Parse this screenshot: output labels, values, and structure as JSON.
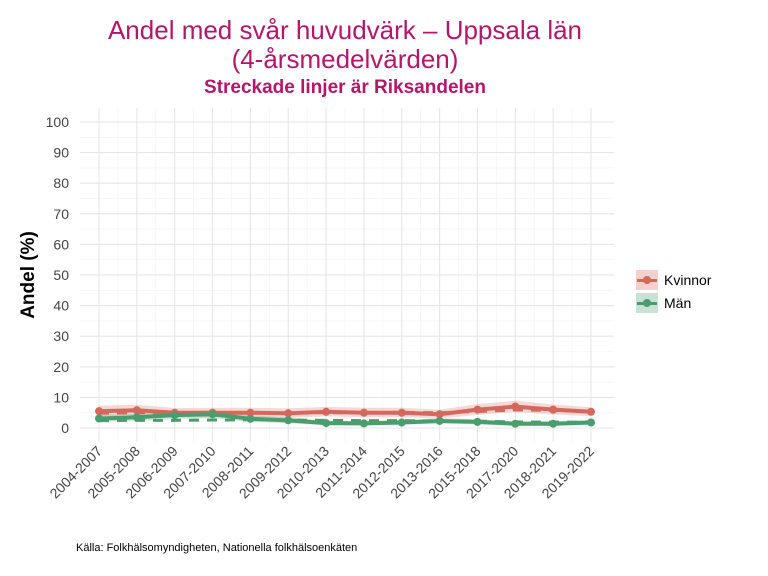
{
  "header": {
    "title_line1": "Andel med svår huvudvärk – Uppsala län",
    "title_line2": "(4-årsmedelvärden)",
    "subtitle": "Streckade linjer är Riksandelen"
  },
  "caption": "Källa: Folkhälsomyndigheten, Nationella folkhälsoenkäten",
  "chart_data": {
    "type": "line",
    "title": "Andel med svår huvudvärk – Uppsala län (4-årsmedelvärden)",
    "subtitle": "Streckade linjer är Riksandelen",
    "xlabel": "",
    "ylabel": "Andel (%)",
    "ylim": [
      0,
      100
    ],
    "yticks": [
      0,
      10,
      20,
      30,
      40,
      50,
      60,
      70,
      80,
      90,
      100
    ],
    "categories": [
      "2004-2007",
      "2005-2008",
      "2006-2009",
      "2007-2010",
      "2008-2011",
      "2009-2012",
      "2010-2013",
      "2011-2014",
      "2012-2015",
      "2013-2016",
      "2015-2018",
      "2017-2020",
      "2018-2021",
      "2019-2022"
    ],
    "legend_position": "right",
    "series": [
      {
        "name": "Kvinnor",
        "color": "#d4685d",
        "values": [
          5.5,
          5.8,
          5.0,
          5.0,
          5.0,
          4.8,
          5.3,
          5.0,
          5.0,
          4.5,
          6.0,
          7.0,
          6.0,
          5.3
        ],
        "lower": [
          3.8,
          4.0,
          3.5,
          3.5,
          3.5,
          3.3,
          3.8,
          3.5,
          3.5,
          3.1,
          4.3,
          5.2,
          4.4,
          3.9
        ],
        "upper": [
          7.3,
          7.6,
          6.5,
          6.6,
          6.6,
          6.4,
          6.9,
          6.6,
          6.6,
          6.0,
          7.8,
          8.9,
          7.7,
          6.8
        ],
        "national": [
          4.8,
          5.0,
          4.9,
          4.8,
          4.9,
          4.9,
          5.0,
          5.0,
          5.1,
          5.0,
          5.4,
          5.9,
          5.8,
          5.5
        ]
      },
      {
        "name": "Män",
        "color": "#4a9e6e",
        "values": [
          3.1,
          3.5,
          4.2,
          4.5,
          3.0,
          2.5,
          1.6,
          1.5,
          1.8,
          2.3,
          2.0,
          1.4,
          1.4,
          1.8
        ],
        "lower": [
          2.0,
          2.3,
          2.9,
          3.2,
          2.0,
          1.6,
          0.9,
          0.8,
          1.1,
          1.5,
          1.2,
          0.7,
          0.7,
          1.1
        ],
        "upper": [
          4.3,
          4.7,
          5.5,
          5.8,
          4.1,
          3.5,
          2.4,
          2.3,
          2.6,
          3.2,
          2.9,
          2.2,
          2.2,
          2.6
        ],
        "national": [
          2.4,
          2.5,
          2.5,
          2.6,
          2.7,
          2.6,
          2.5,
          2.4,
          2.4,
          2.3,
          2.2,
          2.0,
          1.9,
          1.9
        ]
      }
    ]
  }
}
